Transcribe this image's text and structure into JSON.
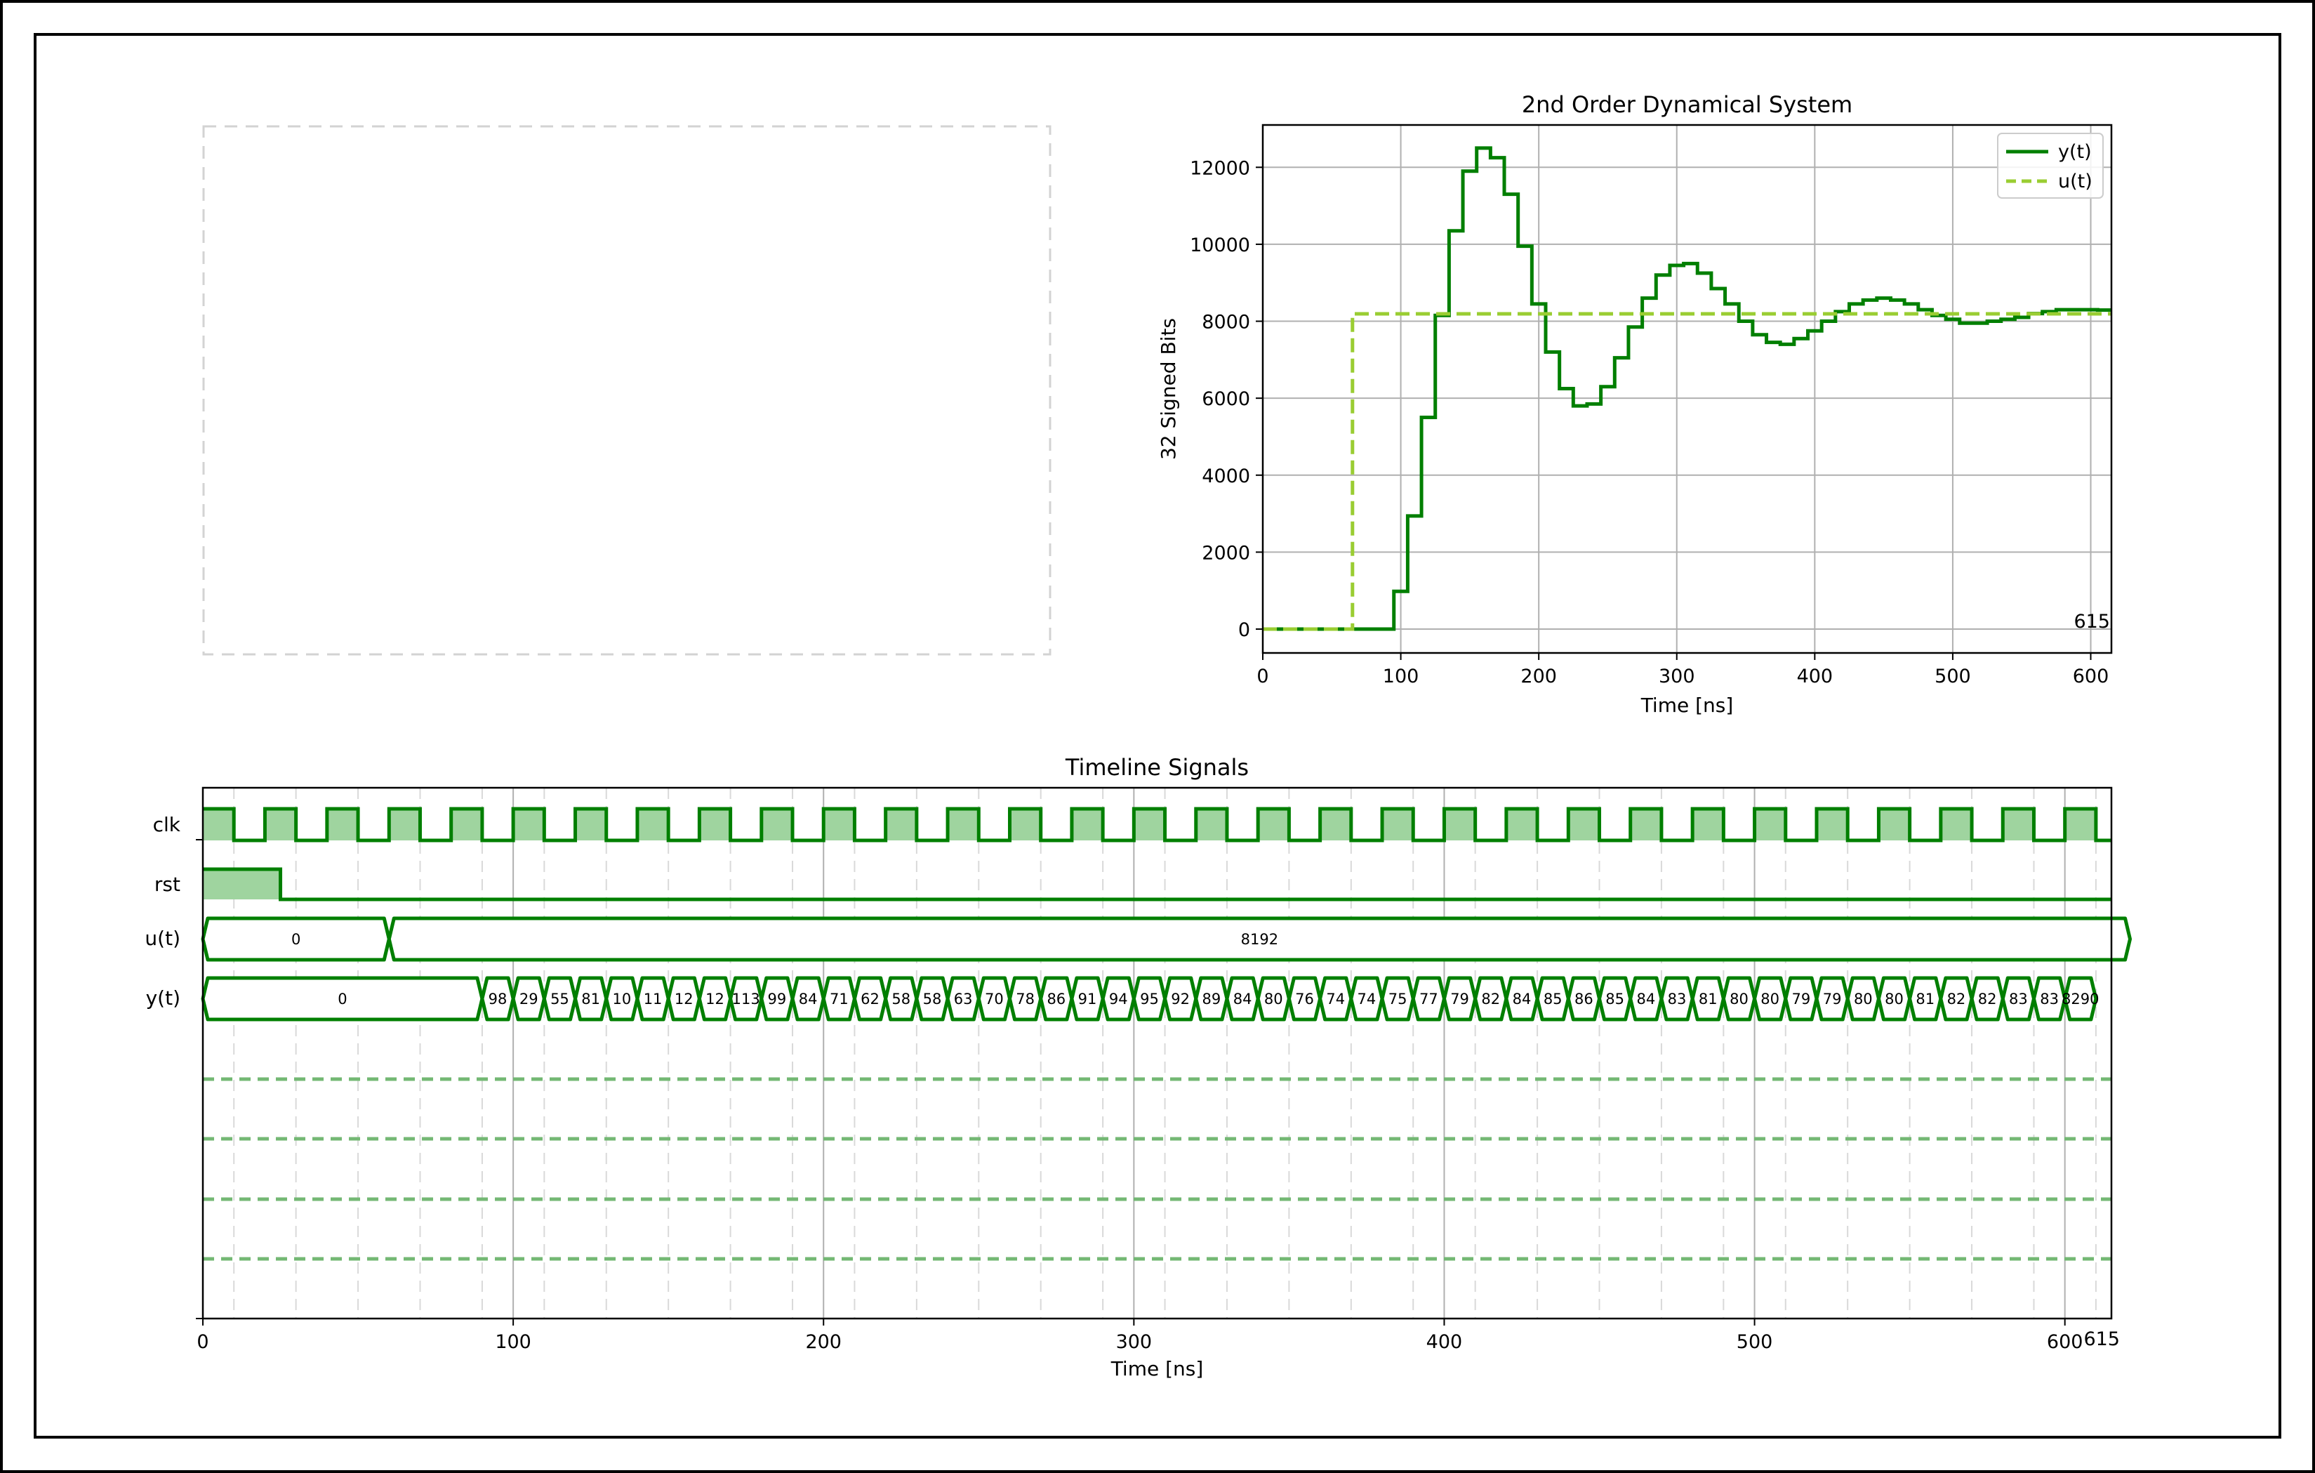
{
  "colors": {
    "y_line": "#007f00",
    "u_line": "#9acd32",
    "grid": "#b0b0b0",
    "trace": "#007f00",
    "fill": "#9fd49f",
    "dashed_row": "#74b874",
    "vdash": "#d9d9d9",
    "placeholder": "#d3d3d3"
  },
  "placeholder": {
    "label": ""
  },
  "chart_data": [
    {
      "type": "line",
      "title": "2nd Order Dynamical System",
      "xlabel": "Time [ns]",
      "ylabel": "32 Signed Bits",
      "xlim": [
        0,
        615
      ],
      "ylim": [
        -620,
        13100
      ],
      "xticks": [
        0,
        100,
        200,
        300,
        400,
        500,
        600
      ],
      "yticks": [
        0,
        2000,
        4000,
        6000,
        8000,
        10000,
        12000
      ],
      "grid": true,
      "legend": "top-right",
      "step": true,
      "annotation": "615",
      "series": [
        {
          "name": "y(t)",
          "style": "solid",
          "x": [
            0,
            95,
            105,
            115,
            125,
            135,
            145,
            155,
            165,
            175,
            185,
            195,
            205,
            215,
            225,
            235,
            245,
            255,
            265,
            275,
            285,
            295,
            305,
            315,
            325,
            335,
            345,
            355,
            365,
            375,
            385,
            395,
            405,
            415,
            425,
            435,
            445,
            455,
            465,
            475,
            485,
            495,
            505,
            515,
            525,
            535,
            545,
            555,
            565,
            575,
            585,
            595,
            605,
            615
          ],
          "y": [
            0,
            980,
            2940,
            5500,
            8150,
            10350,
            11900,
            12500,
            12250,
            11300,
            9950,
            8450,
            7200,
            6250,
            5800,
            5850,
            6300,
            7050,
            7850,
            8600,
            9200,
            9450,
            9500,
            9250,
            8850,
            8450,
            8000,
            7650,
            7450,
            7400,
            7550,
            7750,
            8000,
            8250,
            8450,
            8550,
            8600,
            8550,
            8450,
            8300,
            8150,
            8050,
            7950,
            7950,
            8000,
            8050,
            8100,
            8200,
            8250,
            8300,
            8300,
            8300,
            8290,
            8290
          ]
        },
        {
          "name": "u(t)",
          "style": "dashed",
          "x": [
            0,
            65,
            615
          ],
          "y": [
            0,
            8192,
            8192
          ]
        }
      ]
    },
    {
      "type": "timeline",
      "title": "Timeline Signals",
      "xlabel": "Time [ns]",
      "xlim": [
        0,
        615
      ],
      "xticks": [
        0,
        100,
        200,
        300,
        400,
        500,
        600
      ],
      "annotation": "615",
      "clock_period": 10,
      "clock_high_first": 10,
      "signals": [
        {
          "name": "clk",
          "kind": "clock"
        },
        {
          "name": "rst",
          "kind": "bit",
          "high_until": 25
        },
        {
          "name": "u(t)",
          "kind": "bus",
          "segments": [
            {
              "start": 0,
              "end": 60,
              "label": "0"
            },
            {
              "start": 60,
              "end": 615,
              "label": "8192"
            }
          ]
        },
        {
          "name": "y(t)",
          "kind": "bus",
          "start_label": "0",
          "labels": [
            "98",
            "29",
            "55",
            "81",
            "10",
            "11",
            "12",
            "12",
            "113",
            "99",
            "84",
            "71",
            "62",
            "58",
            "58",
            "63",
            "70",
            "78",
            "86",
            "91",
            "94",
            "95",
            "92",
            "89",
            "84",
            "80",
            "76",
            "74",
            "74",
            "75",
            "77",
            "79",
            "82",
            "84",
            "85",
            "86",
            "85",
            "84",
            "83",
            "81",
            "80",
            "80",
            "79",
            "79",
            "80",
            "80",
            "81",
            "82",
            "82",
            "83",
            "83",
            "8290"
          ]
        }
      ],
      "empty_rows": 4
    }
  ]
}
